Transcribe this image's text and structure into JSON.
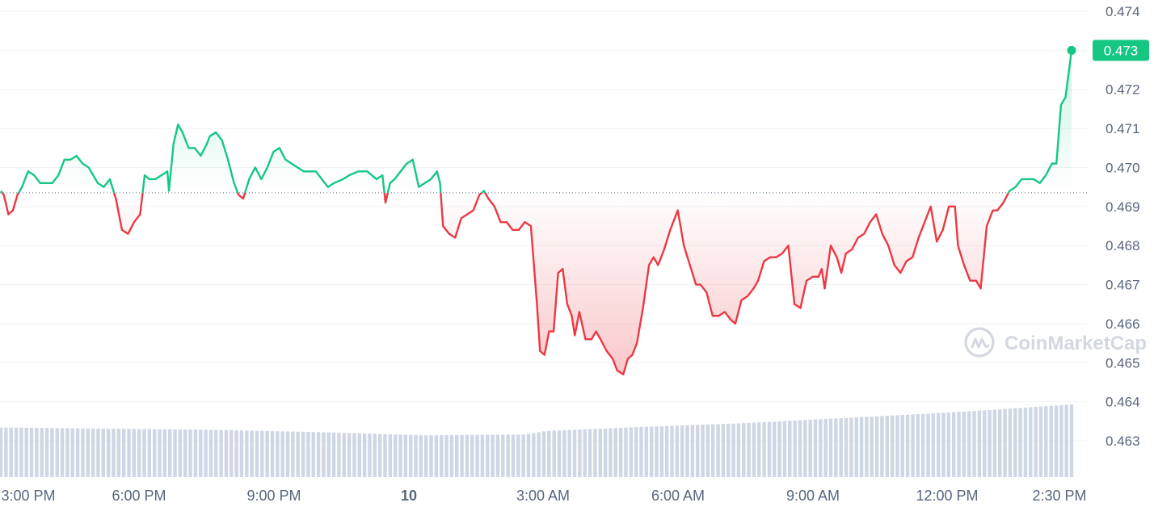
{
  "chart_data": {
    "type": "line",
    "y_ticks": [
      "0.474",
      "0.473",
      "0.472",
      "0.471",
      "0.470",
      "0.469",
      "0.468",
      "0.467",
      "0.466",
      "0.465",
      "0.464",
      "0.463"
    ],
    "x_ticks": [
      "3:00 PM",
      "6:00 PM",
      "9:00 PM",
      "10",
      "3:00 AM",
      "6:00 AM",
      "9:00 AM",
      "12:00 PM",
      "2:30 PM"
    ],
    "ylim": [
      0.4627,
      0.4745
    ],
    "baseline": 0.46935,
    "last_price_label": "0.473",
    "watermark": "CoinMarketCap",
    "colors": {
      "up": "#16c784",
      "down": "#ea3943",
      "volume": "#cfd6e4",
      "grid": "#eff2f5",
      "text": "#58667e"
    },
    "price": [
      [
        0.0,
        0.4694
      ],
      [
        0.1,
        0.4693
      ],
      [
        0.25,
        0.4688
      ],
      [
        0.4,
        0.4689
      ],
      [
        0.55,
        0.4693
      ],
      [
        0.7,
        0.4695
      ],
      [
        0.9,
        0.4699
      ],
      [
        1.1,
        0.4698
      ],
      [
        1.3,
        0.4696
      ],
      [
        1.5,
        0.4696
      ],
      [
        1.7,
        0.4696
      ],
      [
        1.9,
        0.4698
      ],
      [
        2.1,
        0.4702
      ],
      [
        2.3,
        0.4702
      ],
      [
        2.5,
        0.4703
      ],
      [
        2.7,
        0.4701
      ],
      [
        2.9,
        0.47
      ],
      [
        3.05,
        0.4698
      ],
      [
        3.2,
        0.4696
      ],
      [
        3.4,
        0.4695
      ],
      [
        3.6,
        0.4697
      ],
      [
        3.8,
        0.4692
      ],
      [
        4.0,
        0.4684
      ],
      [
        4.2,
        0.4683
      ],
      [
        4.4,
        0.4686
      ],
      [
        4.6,
        0.4688
      ],
      [
        4.75,
        0.4698
      ],
      [
        4.9,
        0.4697
      ],
      [
        5.1,
        0.4697
      ],
      [
        5.3,
        0.4698
      ],
      [
        5.5,
        0.4699
      ],
      [
        5.55,
        0.4694
      ],
      [
        5.7,
        0.4706
      ],
      [
        5.85,
        0.4711
      ],
      [
        6.0,
        0.4709
      ],
      [
        6.2,
        0.4705
      ],
      [
        6.4,
        0.4705
      ],
      [
        6.6,
        0.4703
      ],
      [
        6.8,
        0.4706
      ],
      [
        6.9,
        0.4708
      ],
      [
        7.1,
        0.4709
      ],
      [
        7.3,
        0.4707
      ],
      [
        7.5,
        0.4702
      ],
      [
        7.7,
        0.4696
      ],
      [
        7.85,
        0.4693
      ],
      [
        8.0,
        0.4692
      ],
      [
        8.2,
        0.4697
      ],
      [
        8.4,
        0.47
      ],
      [
        8.6,
        0.4697
      ],
      [
        8.8,
        0.47
      ],
      [
        9.0,
        0.4704
      ],
      [
        9.2,
        0.4705
      ],
      [
        9.4,
        0.4702
      ],
      [
        9.6,
        0.4701
      ],
      [
        9.8,
        0.47
      ],
      [
        10.0,
        0.4699
      ],
      [
        10.2,
        0.4699
      ],
      [
        10.4,
        0.4699
      ],
      [
        10.6,
        0.4697
      ],
      [
        10.8,
        0.4695
      ],
      [
        11.0,
        0.4696
      ],
      [
        11.3,
        0.4697
      ],
      [
        11.5,
        0.4698
      ],
      [
        11.8,
        0.4699
      ],
      [
        12.1,
        0.4699
      ],
      [
        12.4,
        0.4697
      ],
      [
        12.6,
        0.4698
      ],
      [
        12.7,
        0.4691
      ],
      [
        12.85,
        0.4696
      ],
      [
        13.0,
        0.4697
      ],
      [
        13.2,
        0.4699
      ],
      [
        13.4,
        0.4701
      ],
      [
        13.6,
        0.4702
      ],
      [
        13.8,
        0.4695
      ],
      [
        14.0,
        0.4696
      ],
      [
        14.2,
        0.4697
      ],
      [
        14.4,
        0.4699
      ],
      [
        14.5,
        0.4696
      ],
      [
        14.6,
        0.4685
      ],
      [
        14.8,
        0.4683
      ],
      [
        15.0,
        0.4682
      ],
      [
        15.2,
        0.4687
      ],
      [
        15.4,
        0.4688
      ],
      [
        15.6,
        0.4689
      ],
      [
        15.8,
        0.4693
      ],
      [
        15.95,
        0.4694
      ],
      [
        16.1,
        0.4692
      ],
      [
        16.3,
        0.469
      ],
      [
        16.5,
        0.4686
      ],
      [
        16.7,
        0.4686
      ],
      [
        16.9,
        0.4684
      ],
      [
        17.1,
        0.4684
      ],
      [
        17.3,
        0.4686
      ],
      [
        17.5,
        0.4685
      ],
      [
        17.7,
        0.4665
      ],
      [
        17.8,
        0.4653
      ],
      [
        17.95,
        0.4652
      ],
      [
        18.1,
        0.4658
      ],
      [
        18.25,
        0.4658
      ],
      [
        18.4,
        0.4673
      ],
      [
        18.55,
        0.4674
      ],
      [
        18.7,
        0.4665
      ],
      [
        18.85,
        0.4662
      ],
      [
        18.95,
        0.4657
      ],
      [
        19.1,
        0.4663
      ],
      [
        19.3,
        0.4656
      ],
      [
        19.5,
        0.4656
      ],
      [
        19.65,
        0.4658
      ],
      [
        19.8,
        0.4656
      ],
      [
        20.0,
        0.4653
      ],
      [
        20.2,
        0.4651
      ],
      [
        20.35,
        0.4648
      ],
      [
        20.55,
        0.4647
      ],
      [
        20.7,
        0.4651
      ],
      [
        20.85,
        0.4652
      ],
      [
        21.0,
        0.4655
      ],
      [
        21.2,
        0.4664
      ],
      [
        21.4,
        0.4675
      ],
      [
        21.55,
        0.4677
      ],
      [
        21.7,
        0.4675
      ],
      [
        21.9,
        0.4679
      ],
      [
        22.1,
        0.4684
      ],
      [
        22.35,
        0.4689
      ],
      [
        22.55,
        0.468
      ],
      [
        22.75,
        0.4675
      ],
      [
        22.95,
        0.467
      ],
      [
        23.1,
        0.467
      ],
      [
        23.3,
        0.4668
      ],
      [
        23.5,
        0.4662
      ],
      [
        23.7,
        0.4662
      ],
      [
        23.9,
        0.4663
      ],
      [
        24.1,
        0.4661
      ],
      [
        24.25,
        0.466
      ],
      [
        24.45,
        0.4666
      ],
      [
        24.65,
        0.4667
      ],
      [
        24.85,
        0.4669
      ],
      [
        25.0,
        0.4671
      ],
      [
        25.2,
        0.4676
      ],
      [
        25.4,
        0.4677
      ],
      [
        25.6,
        0.4677
      ],
      [
        25.8,
        0.4678
      ],
      [
        26.0,
        0.468
      ],
      [
        26.2,
        0.4665
      ],
      [
        26.4,
        0.4664
      ],
      [
        26.6,
        0.4671
      ],
      [
        26.8,
        0.4672
      ],
      [
        27.0,
        0.4672
      ],
      [
        27.1,
        0.4674
      ],
      [
        27.2,
        0.4669
      ],
      [
        27.4,
        0.468
      ],
      [
        27.6,
        0.4677
      ],
      [
        27.75,
        0.4673
      ],
      [
        27.9,
        0.4678
      ],
      [
        28.1,
        0.4679
      ],
      [
        28.3,
        0.4682
      ],
      [
        28.5,
        0.4683
      ],
      [
        28.7,
        0.4686
      ],
      [
        28.9,
        0.4688
      ],
      [
        29.1,
        0.4683
      ],
      [
        29.3,
        0.468
      ],
      [
        29.5,
        0.4675
      ],
      [
        29.7,
        0.4673
      ],
      [
        29.9,
        0.4676
      ],
      [
        30.1,
        0.4677
      ],
      [
        30.3,
        0.4682
      ],
      [
        30.5,
        0.4686
      ],
      [
        30.7,
        0.469
      ],
      [
        30.9,
        0.4681
      ],
      [
        31.1,
        0.4684
      ],
      [
        31.3,
        0.469
      ],
      [
        31.5,
        0.469
      ],
      [
        31.6,
        0.468
      ],
      [
        31.8,
        0.4675
      ],
      [
        32.0,
        0.4671
      ],
      [
        32.2,
        0.4671
      ],
      [
        32.35,
        0.4669
      ],
      [
        32.55,
        0.4685
      ],
      [
        32.75,
        0.4689
      ],
      [
        32.9,
        0.4689
      ],
      [
        33.1,
        0.4691
      ],
      [
        33.3,
        0.4694
      ],
      [
        33.5,
        0.4695
      ],
      [
        33.7,
        0.4697
      ],
      [
        33.9,
        0.4697
      ],
      [
        34.1,
        0.4697
      ],
      [
        34.3,
        0.4696
      ],
      [
        34.5,
        0.4698
      ],
      [
        34.7,
        0.4701
      ],
      [
        34.85,
        0.4701
      ],
      [
        35.0,
        0.4716
      ],
      [
        35.15,
        0.4718
      ],
      [
        35.35,
        0.473
      ]
    ],
    "volume": {
      "start_x": 0.0,
      "end_x": 35.35,
      "count": 210,
      "profile": [
        [
          0.0,
          0.46334
        ],
        [
          3.5,
          0.46331
        ],
        [
          7.0,
          0.46328
        ],
        [
          10.5,
          0.46322
        ],
        [
          14.0,
          0.46314
        ],
        [
          17.3,
          0.46316
        ],
        [
          18.0,
          0.46325
        ],
        [
          21.0,
          0.46335
        ],
        [
          24.5,
          0.46345
        ],
        [
          27.5,
          0.46357
        ],
        [
          30.5,
          0.46369
        ],
        [
          32.5,
          0.46378
        ],
        [
          35.35,
          0.46393
        ]
      ]
    }
  }
}
